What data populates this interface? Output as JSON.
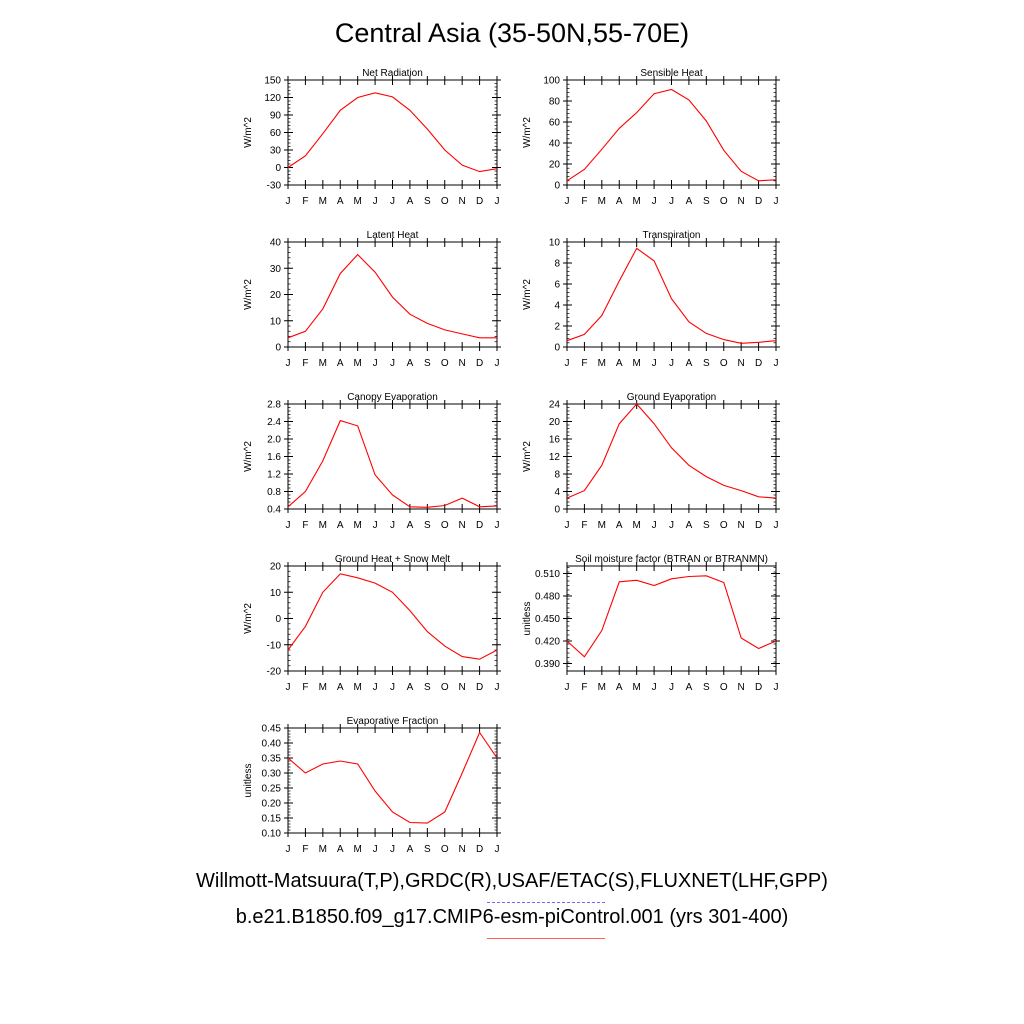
{
  "figure": {
    "title": "Central Asia (35-50N,55-70E)",
    "legend_obs": "Willmott-Matsuura(T,P),GRDC(R),USAF/ETAC(S),FLUXNET(LHF,GPP)",
    "legend_model": "b.e21.B1850.f09_g17.CMIP6-esm-piControl.001 (yrs 301-400)",
    "colors": {
      "model": "#ff0000",
      "obs": "#6a6aff"
    }
  },
  "chart_data": [
    {
      "type": "line",
      "title": "Net Radiation",
      "ylabel": "W/m^2",
      "categories": [
        "J",
        "F",
        "M",
        "A",
        "M",
        "J",
        "J",
        "A",
        "S",
        "O",
        "N",
        "D",
        "J"
      ],
      "yticks": [
        "-30",
        "0",
        "30",
        "60",
        "90",
        "120",
        "150"
      ],
      "ylim": [
        -30,
        150
      ],
      "series": [
        {
          "values": [
            0,
            20,
            58,
            98,
            120,
            128,
            121,
            98,
            66,
            30,
            4,
            -7,
            -2
          ]
        }
      ]
    },
    {
      "type": "line",
      "title": "Sensible Heat",
      "ylabel": "W/m^2",
      "categories": [
        "J",
        "F",
        "M",
        "A",
        "M",
        "J",
        "J",
        "A",
        "S",
        "O",
        "N",
        "D",
        "J"
      ],
      "yticks": [
        "0",
        "20",
        "40",
        "60",
        "80",
        "100"
      ],
      "ylim": [
        0,
        100
      ],
      "series": [
        {
          "values": [
            4,
            15,
            34,
            54,
            69,
            87,
            91,
            81,
            61,
            33,
            13,
            4,
            5
          ]
        }
      ]
    },
    {
      "type": "line",
      "title": "Latent Heat",
      "ylabel": "W/m^2",
      "categories": [
        "J",
        "F",
        "M",
        "A",
        "M",
        "J",
        "J",
        "A",
        "S",
        "O",
        "N",
        "D",
        "J"
      ],
      "yticks": [
        "0",
        "10",
        "20",
        "30",
        "40"
      ],
      "ylim": [
        0,
        40
      ],
      "series": [
        {
          "values": [
            3.5,
            6,
            14.5,
            28,
            35.2,
            28.5,
            19,
            12.5,
            9,
            6.5,
            5,
            3.5,
            3.5
          ]
        }
      ]
    },
    {
      "type": "line",
      "title": "Transpiration",
      "ylabel": "W/m^2",
      "categories": [
        "J",
        "F",
        "M",
        "A",
        "M",
        "J",
        "J",
        "A",
        "S",
        "O",
        "N",
        "D",
        "J"
      ],
      "yticks": [
        "0",
        "2",
        "4",
        "6",
        "8",
        "10"
      ],
      "ylim": [
        0,
        10
      ],
      "series": [
        {
          "values": [
            0.6,
            1.2,
            3.0,
            6.3,
            9.4,
            8.2,
            4.6,
            2.4,
            1.3,
            0.7,
            0.35,
            0.45,
            0.6
          ]
        }
      ]
    },
    {
      "type": "line",
      "title": "Canopy Evaporation",
      "ylabel": "W/m^2",
      "categories": [
        "J",
        "F",
        "M",
        "A",
        "M",
        "J",
        "J",
        "A",
        "S",
        "O",
        "N",
        "D",
        "J"
      ],
      "yticks": [
        "0.4",
        "0.8",
        "1.2",
        "1.6",
        "2.0",
        "2.4",
        "2.8"
      ],
      "ylim": [
        0.4,
        2.8
      ],
      "series": [
        {
          "values": [
            0.45,
            0.8,
            1.5,
            2.42,
            2.3,
            1.18,
            0.72,
            0.45,
            0.44,
            0.48,
            0.65,
            0.45,
            0.47
          ]
        }
      ]
    },
    {
      "type": "line",
      "title": "Ground Evaporation",
      "ylabel": "W/m^2",
      "categories": [
        "J",
        "F",
        "M",
        "A",
        "M",
        "J",
        "J",
        "A",
        "S",
        "O",
        "N",
        "D",
        "J"
      ],
      "yticks": [
        "0",
        "4",
        "8",
        "12",
        "16",
        "20",
        "24"
      ],
      "ylim": [
        0,
        24
      ],
      "series": [
        {
          "values": [
            2.5,
            4.2,
            10,
            19.5,
            24,
            19.5,
            14,
            10,
            7.4,
            5.4,
            4.2,
            2.8,
            2.5
          ]
        }
      ]
    },
    {
      "type": "line",
      "title": "Ground Heat + Snow Melt",
      "ylabel": "W/m^2",
      "categories": [
        "J",
        "F",
        "M",
        "A",
        "M",
        "J",
        "J",
        "A",
        "S",
        "O",
        "N",
        "D",
        "J"
      ],
      "yticks": [
        "-20",
        "-10",
        "0",
        "10",
        "20"
      ],
      "ylim": [
        -20,
        20
      ],
      "series": [
        {
          "values": [
            -12,
            -3,
            10,
            17,
            15.5,
            13.5,
            10,
            3,
            -5,
            -10.5,
            -14.5,
            -15.5,
            -12
          ]
        }
      ]
    },
    {
      "type": "line",
      "title": "Soil moisture factor (BTRAN or BTRANMN)",
      "ylabel": "unitless",
      "categories": [
        "J",
        "F",
        "M",
        "A",
        "M",
        "J",
        "J",
        "A",
        "S",
        "O",
        "N",
        "D",
        "J"
      ],
      "yticks": [
        "0.390",
        "0.420",
        "0.450",
        "0.480",
        "0.510"
      ],
      "ylim": [
        0.38,
        0.52
      ],
      "series": [
        {
          "values": [
            0.42,
            0.399,
            0.434,
            0.499,
            0.501,
            0.494,
            0.503,
            0.506,
            0.507,
            0.498,
            0.424,
            0.41,
            0.42
          ]
        }
      ]
    },
    {
      "type": "line",
      "title": "Evaporative Fraction",
      "ylabel": "unitless",
      "categories": [
        "J",
        "F",
        "M",
        "A",
        "M",
        "J",
        "J",
        "A",
        "S",
        "O",
        "N",
        "D",
        "J"
      ],
      "yticks": [
        "0.10",
        "0.15",
        "0.20",
        "0.25",
        "0.30",
        "0.35",
        "0.40",
        "0.45"
      ],
      "ylim": [
        0.1,
        0.45
      ],
      "series": [
        {
          "values": [
            0.35,
            0.3,
            0.33,
            0.34,
            0.33,
            0.24,
            0.17,
            0.135,
            0.133,
            0.17,
            0.3,
            0.435,
            0.35
          ]
        }
      ]
    }
  ]
}
